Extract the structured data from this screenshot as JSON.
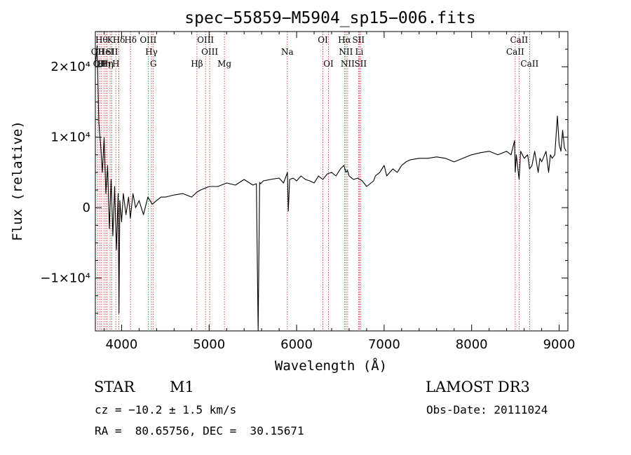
{
  "chart_data": {
    "type": "line",
    "title": "spec−55859−M5904_sp15−006.fits",
    "xlabel": "Wavelength (Å)",
    "ylabel": "Flux (relative)",
    "xlim": [
      3700,
      9100
    ],
    "ylim": [
      -17500,
      25000
    ],
    "x_ticks": [
      {
        "value": 4000,
        "label": "4000"
      },
      {
        "value": 5000,
        "label": "5000"
      },
      {
        "value": 6000,
        "label": "6000"
      },
      {
        "value": 7000,
        "label": "7000"
      },
      {
        "value": 8000,
        "label": "8000"
      },
      {
        "value": 9000,
        "label": "9000"
      }
    ],
    "y_ticks": [
      {
        "value": 20000,
        "label": "2×10⁴"
      },
      {
        "value": 10000,
        "label": "1×10⁴"
      },
      {
        "value": 0,
        "label": "0"
      },
      {
        "value": -10000,
        "label": "−1×10⁴"
      }
    ],
    "series": [
      {
        "name": "flux",
        "x": [
          3700,
          3720,
          3740,
          3760,
          3780,
          3800,
          3820,
          3840,
          3860,
          3880,
          3900,
          3920,
          3940,
          3960,
          3970,
          3980,
          4000,
          4020,
          4050,
          4080,
          4100,
          4130,
          4160,
          4200,
          4250,
          4300,
          4350,
          4400,
          4450,
          4500,
          4600,
          4700,
          4800,
          4860,
          4900,
          5000,
          5100,
          5200,
          5300,
          5400,
          5500,
          5540,
          5560,
          5577,
          5590,
          5620,
          5700,
          5800,
          5850,
          5880,
          5895,
          5905,
          5920,
          5960,
          6000,
          6050,
          6080,
          6100,
          6150,
          6200,
          6250,
          6300,
          6350,
          6400,
          6450,
          6500,
          6540,
          6563,
          6580,
          6600,
          6650,
          6700,
          6750,
          6800,
          6850,
          6880,
          6900,
          6950,
          7000,
          7030,
          7050,
          7100,
          7150,
          7200,
          7250,
          7300,
          7400,
          7500,
          7600,
          7700,
          7800,
          7900,
          8000,
          8100,
          8200,
          8300,
          8400,
          8450,
          8490,
          8498,
          8510,
          8542,
          8560,
          8600,
          8640,
          8662,
          8690,
          8720,
          8760,
          8780,
          8800,
          8850,
          8880,
          8900,
          8920,
          8950,
          8980,
          9000,
          9020,
          9040,
          9060,
          9080
        ],
        "y": [
          20000,
          23000,
          12000,
          9000,
          5000,
          10000,
          2000,
          6000,
          -3000,
          4000,
          -4000,
          3000,
          -6000,
          2000,
          -15000,
          1000,
          -2000,
          2000,
          -1000,
          1500,
          -1500,
          2000,
          0,
          1000,
          -1000,
          1500,
          500,
          1000,
          1500,
          1500,
          1800,
          2000,
          1500,
          2200,
          2500,
          3000,
          3000,
          3500,
          3200,
          4000,
          3200,
          3400,
          -18000,
          3600,
          3400,
          3800,
          4000,
          4200,
          3500,
          4500,
          5000,
          -500,
          4000,
          4200,
          3800,
          4500,
          4200,
          4000,
          3800,
          3500,
          4500,
          4000,
          4800,
          5000,
          4500,
          5500,
          6000,
          5000,
          5300,
          4500,
          4000,
          4200,
          3800,
          3000,
          3500,
          3800,
          4500,
          5000,
          6000,
          4500,
          4800,
          5500,
          5000,
          6000,
          6500,
          6800,
          7000,
          7000,
          7200,
          7000,
          6500,
          7000,
          7500,
          7800,
          8000,
          7500,
          8000,
          7500,
          9500,
          5000,
          7500,
          4000,
          8000,
          7000,
          7500,
          5500,
          6000,
          8000,
          5000,
          7000,
          6500,
          8000,
          5000,
          7500,
          7000,
          7500,
          13000,
          9000,
          8000,
          11000,
          8500,
          8000
        ]
      }
    ],
    "emission_lines": [
      {
        "wl": 3727,
        "label": "OII",
        "row": 2
      },
      {
        "wl": 3750,
        "label": "OII",
        "row": 3
      },
      {
        "wl": 3771,
        "label": "Hθ",
        "row": 1
      },
      {
        "wl": 3798,
        "label": "Hη",
        "row": 3
      },
      {
        "wl": 3820,
        "label": "HeI",
        "row": 2
      },
      {
        "wl": 3835,
        "label": "Hη",
        "row": 3
      },
      {
        "wl": 3869,
        "label": "K",
        "row": 1
      },
      {
        "wl": 3889,
        "label": "SII",
        "row": 2
      },
      {
        "wl": 3934,
        "label": "H",
        "row": 3
      },
      {
        "wl": 3969,
        "label": "Hδ",
        "row": 1
      },
      {
        "wl": 4102,
        "label": "Hδ",
        "row": 1
      },
      {
        "wl": 4304,
        "label": "OIII",
        "row": 1
      },
      {
        "wl": 4341,
        "label": "Hγ",
        "row": 2
      },
      {
        "wl": 4363,
        "label": "G",
        "row": 3
      },
      {
        "wl": 4861,
        "label": "Hβ",
        "row": 3
      },
      {
        "wl": 4959,
        "label": "OIII",
        "row": 1
      },
      {
        "wl": 5007,
        "label": "OIII",
        "row": 2
      },
      {
        "wl": 5175,
        "label": "Mg",
        "row": 3
      },
      {
        "wl": 5894,
        "label": "Na",
        "row": 2
      },
      {
        "wl": 6300,
        "label": "OI",
        "row": 1
      },
      {
        "wl": 6364,
        "label": "OI",
        "row": 3
      },
      {
        "wl": 6548,
        "label": "Hα",
        "row": 1
      },
      {
        "wl": 6563,
        "label": "NII",
        "row": 2
      },
      {
        "wl": 6583,
        "label": "NII",
        "row": 3
      },
      {
        "wl": 6707,
        "label": "SII",
        "row": 1
      },
      {
        "wl": 6716,
        "label": "Li",
        "row": 2
      },
      {
        "wl": 6731,
        "label": "SII",
        "row": 3
      },
      {
        "wl": 8498,
        "label": "CaII",
        "row": 2
      },
      {
        "wl": 8542,
        "label": "CaII",
        "row": 1
      },
      {
        "wl": 8662,
        "label": "CaII",
        "row": 3
      }
    ]
  },
  "info": {
    "object_class": "STAR",
    "subclass": "M1",
    "cz": "cz = −10.2 ± 1.5 km/s",
    "coords": "RA =  80.65756, DEC =  30.15671",
    "survey": "LAMOST DR3",
    "obs_date": "Obs-Date: 20111024"
  },
  "colors": {
    "line_marker": "#cc2222",
    "spectrum": "#000000"
  }
}
